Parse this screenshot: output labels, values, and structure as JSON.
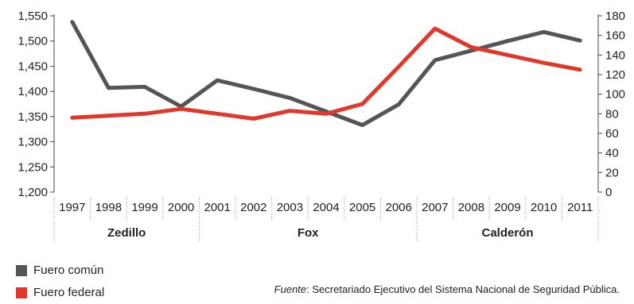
{
  "chart_data": {
    "type": "line",
    "categories": [
      "1997",
      "1998",
      "1999",
      "2000",
      "2001",
      "2002",
      "2003",
      "2004",
      "2005",
      "2006",
      "2007",
      "2008",
      "2009",
      "2010",
      "2011"
    ],
    "series": [
      {
        "name": "Fuero común",
        "axis": "left",
        "color": "#555555",
        "values": [
          1538,
          1407,
          1409,
          1370,
          1422,
          1405,
          1387,
          1360,
          1333,
          1374,
          1462,
          1481,
          1500,
          1518,
          1501
        ]
      },
      {
        "name": "Fuero federal",
        "axis": "right",
        "color": "#e0382c",
        "values": [
          76,
          78,
          80,
          85,
          80,
          75,
          83,
          80,
          90,
          128,
          167,
          148,
          140,
          132,
          125
        ]
      }
    ],
    "y_left": {
      "ticks": [
        "1,200",
        "1,250",
        "1,300",
        "1,350",
        "1,400",
        "1,450",
        "1,500",
        "1,550"
      ],
      "range": [
        1200,
        1550
      ]
    },
    "y_right": {
      "ticks": [
        "0",
        "20",
        "40",
        "60",
        "80",
        "100",
        "120",
        "140",
        "160",
        "180"
      ],
      "range": [
        0,
        180
      ]
    },
    "periods": [
      {
        "label": "Zedillo",
        "years": [
          "1997",
          "2000"
        ]
      },
      {
        "label": "Fox",
        "years": [
          "2001",
          "2006"
        ]
      },
      {
        "label": "Calderón",
        "years": [
          "2007",
          "2011"
        ]
      }
    ],
    "grid": false,
    "legend_position": "bottom-left"
  },
  "legend": [
    {
      "label": "Fuero común",
      "color": "#555555"
    },
    {
      "label": "Fuero federal",
      "color": "#e0382c"
    }
  ],
  "source": {
    "prefix": "Fuente",
    "text": ": Secretariado Ejecutivo del Sistema Nacional de Seguridad Pública."
  }
}
